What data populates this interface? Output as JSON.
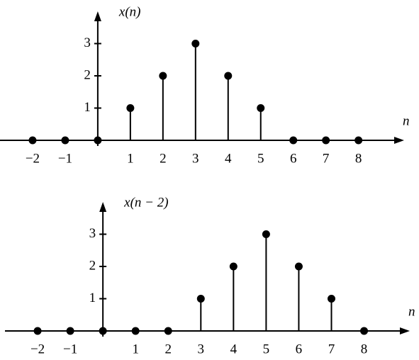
{
  "chart_data": [
    {
      "type": "stem",
      "ylabel": "x(n)",
      "xlabel": "n",
      "x": [
        -2,
        -1,
        0,
        1,
        2,
        3,
        4,
        5,
        6,
        7,
        8
      ],
      "values": [
        0,
        0,
        0,
        1,
        2,
        3,
        2,
        1,
        0,
        0,
        0
      ],
      "color": "#000000",
      "xlim": [
        -3,
        9.4
      ],
      "ylim": [
        0,
        4
      ],
      "xticks": [
        {
          "value": -2,
          "label": "−2"
        },
        {
          "value": -1,
          "label": "−1"
        },
        1,
        2,
        3,
        4,
        5,
        6,
        7,
        8
      ],
      "yticks": [
        1,
        2,
        3
      ]
    },
    {
      "type": "stem",
      "ylabel": "x(n − 2)",
      "xlabel": "n",
      "x": [
        -2,
        -1,
        0,
        1,
        2,
        3,
        4,
        5,
        6,
        7,
        8
      ],
      "values": [
        0,
        0,
        0,
        0,
        0,
        1,
        2,
        3,
        2,
        1,
        0
      ],
      "color": "#000000",
      "xlim": [
        -3,
        9.4
      ],
      "ylim": [
        0,
        4
      ],
      "xticks": [
        {
          "value": -2,
          "label": "−2"
        },
        {
          "value": -1,
          "label": "−1"
        },
        1,
        2,
        3,
        4,
        5,
        6,
        7,
        8
      ],
      "yticks": [
        1,
        2,
        3
      ]
    }
  ]
}
